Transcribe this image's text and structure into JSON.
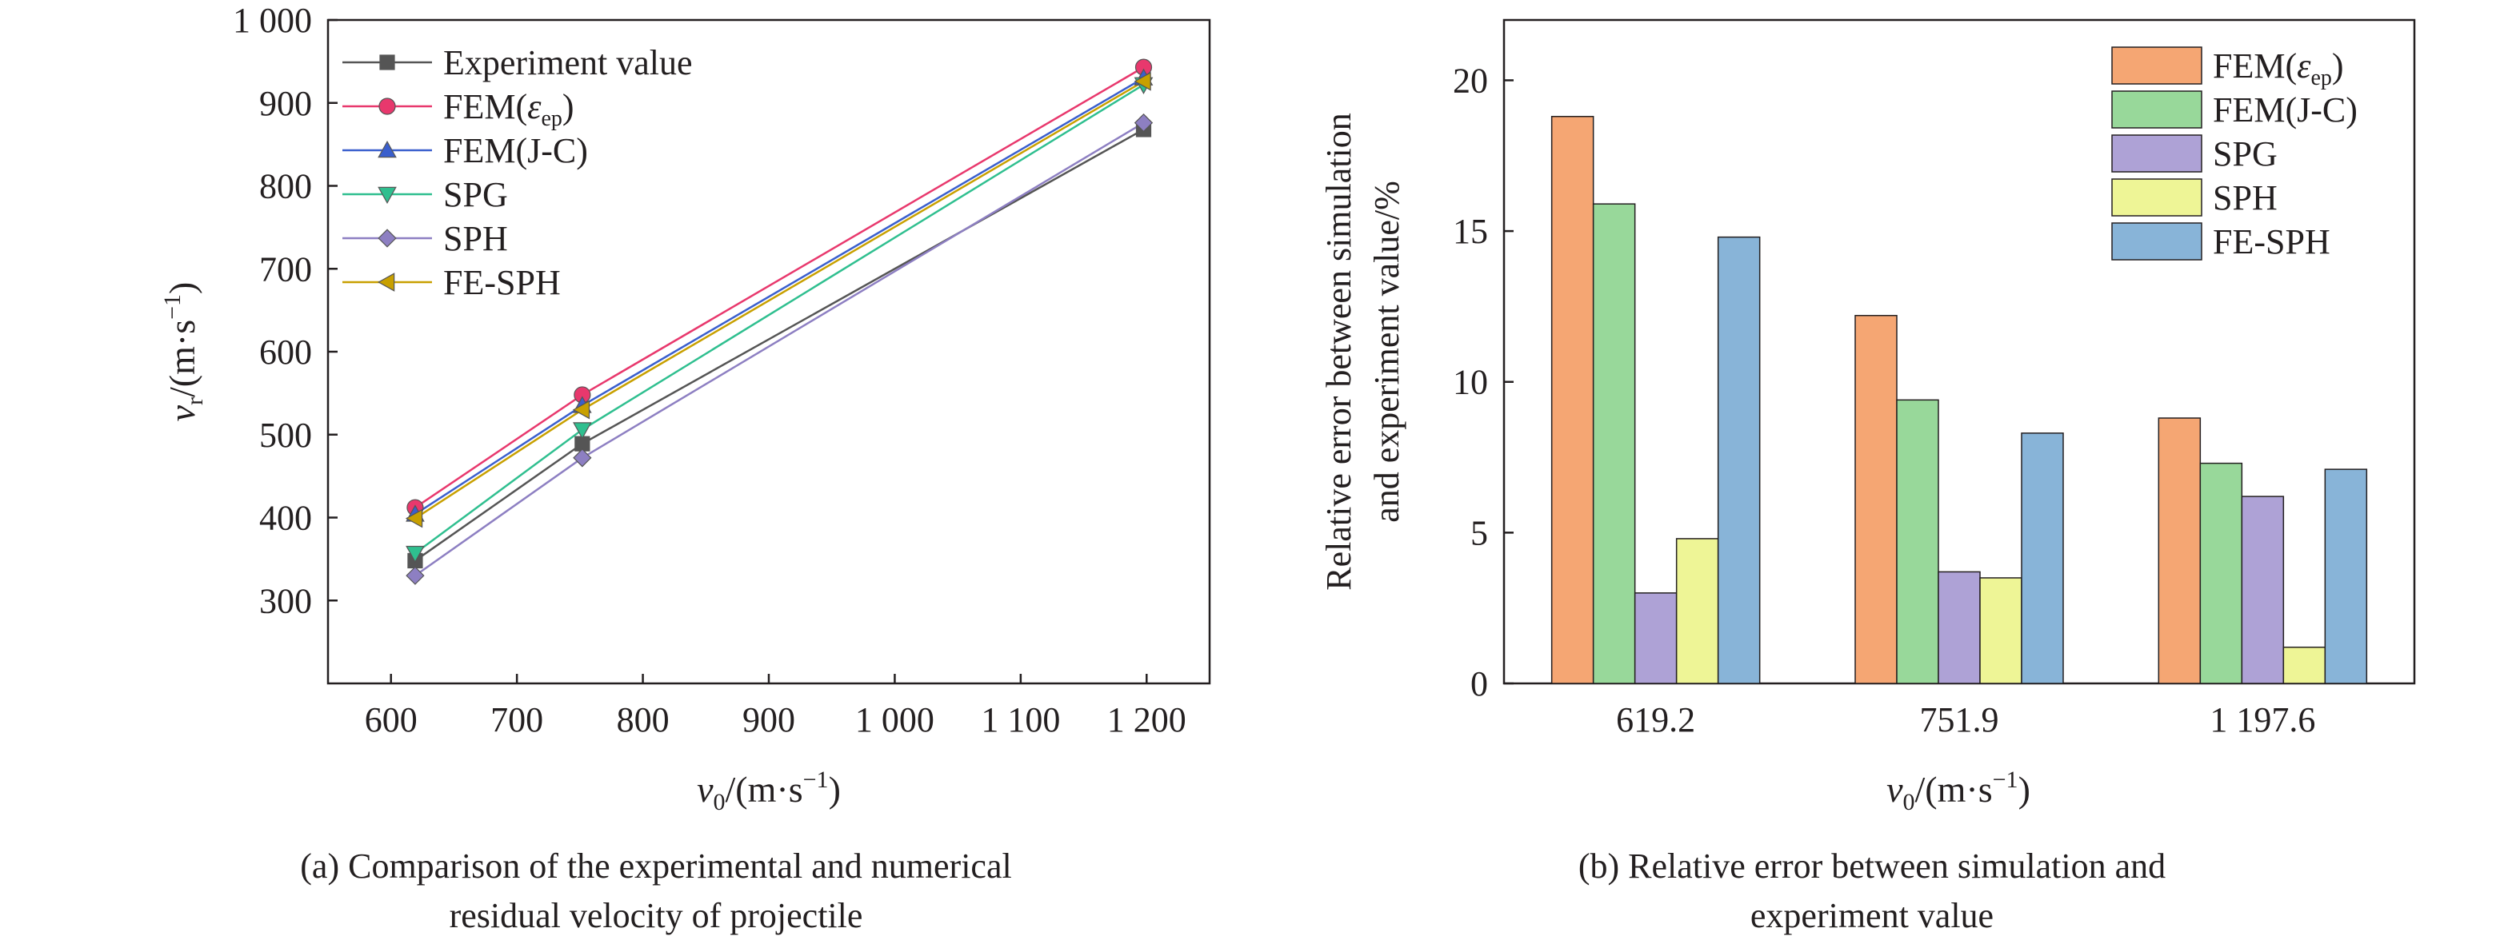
{
  "chart_data": [
    {
      "type": "line",
      "caption": [
        "(a) Comparison of the experimental and numerical",
        "residual velocity of projectile"
      ],
      "xlabel": {
        "base": "v",
        "sub": "0",
        "units": "/(m·s",
        "exp": "−1",
        "close": ")"
      },
      "ylabel": {
        "base": "v",
        "sub": "r",
        "units": "/(m·s",
        "exp": "−1",
        "close": ")"
      },
      "xlim": [
        550,
        1250
      ],
      "ylim": [
        200,
        1000
      ],
      "xticks": [
        600,
        700,
        800,
        900,
        1000,
        1100,
        1200
      ],
      "xtick_labels": [
        "600",
        "700",
        "800",
        "900",
        "1 000",
        "1 100",
        "1 200"
      ],
      "yticks": [
        300,
        400,
        500,
        600,
        700,
        800,
        900,
        1000
      ],
      "ytick_labels": [
        "300",
        "400",
        "500",
        "600",
        "700",
        "800",
        "900",
        "1 000"
      ],
      "grid": false,
      "legend_position": "top-left",
      "x": [
        619.2,
        751.9,
        1197.6
      ],
      "series": [
        {
          "name": "Experiment value",
          "values": [
            348,
            489,
            868
          ],
          "color": "#555555",
          "marker": "square"
        },
        {
          "name": "FEM(εep)",
          "label": {
            "base": "FEM(",
            "ital": "ε",
            "sub": "ep",
            "close": ")"
          },
          "values": [
            412,
            548,
            943
          ],
          "color": "#e8386d",
          "marker": "circle"
        },
        {
          "name": "FEM(J-C)",
          "values": [
            404,
            535,
            930
          ],
          "color": "#3a5fcd",
          "marker": "triangle-up"
        },
        {
          "name": "SPG",
          "values": [
            357,
            506,
            922
          ],
          "color": "#2fbf8f",
          "marker": "triangle-down"
        },
        {
          "name": "SPH",
          "values": [
            330,
            472,
            876
          ],
          "color": "#8d7fc2",
          "marker": "diamond"
        },
        {
          "name": "FE-SPH",
          "values": [
            399,
            530,
            926
          ],
          "color": "#c8a000",
          "marker": "triangle-left"
        }
      ]
    },
    {
      "type": "bar",
      "caption": [
        "(b) Relative error between simulation and",
        "experiment value"
      ],
      "xlabel": {
        "base": "v",
        "sub": "0",
        "units": "/(m·s",
        "exp": "−1",
        "close": ")"
      },
      "ylabel": [
        "Relative error between simulation",
        "and experiment value/%"
      ],
      "categories": [
        "619.2",
        "751.9",
        "1 197.6"
      ],
      "ylim": [
        0,
        22
      ],
      "yticks": [
        0,
        5,
        10,
        15,
        20
      ],
      "ytick_labels": [
        "0",
        "5",
        "10",
        "15",
        "20"
      ],
      "grid": false,
      "legend_position": "top-right",
      "series": [
        {
          "name": "FEM(εep)",
          "label": {
            "base": "FEM(",
            "ital": "ε",
            "sub": "ep",
            "close": ")"
          },
          "values": [
            18.8,
            12.2,
            8.8
          ],
          "color": "#f5a673"
        },
        {
          "name": "FEM(J-C)",
          "values": [
            15.9,
            9.4,
            7.3
          ],
          "color": "#98d89a"
        },
        {
          "name": "SPG",
          "values": [
            3.0,
            3.7,
            6.2
          ],
          "color": "#aea2d6"
        },
        {
          "name": "SPH",
          "values": [
            4.8,
            3.5,
            1.2
          ],
          "color": "#eef596"
        },
        {
          "name": "FE-SPH",
          "values": [
            14.8,
            8.3,
            7.1
          ],
          "color": "#88b4d8"
        }
      ]
    }
  ]
}
